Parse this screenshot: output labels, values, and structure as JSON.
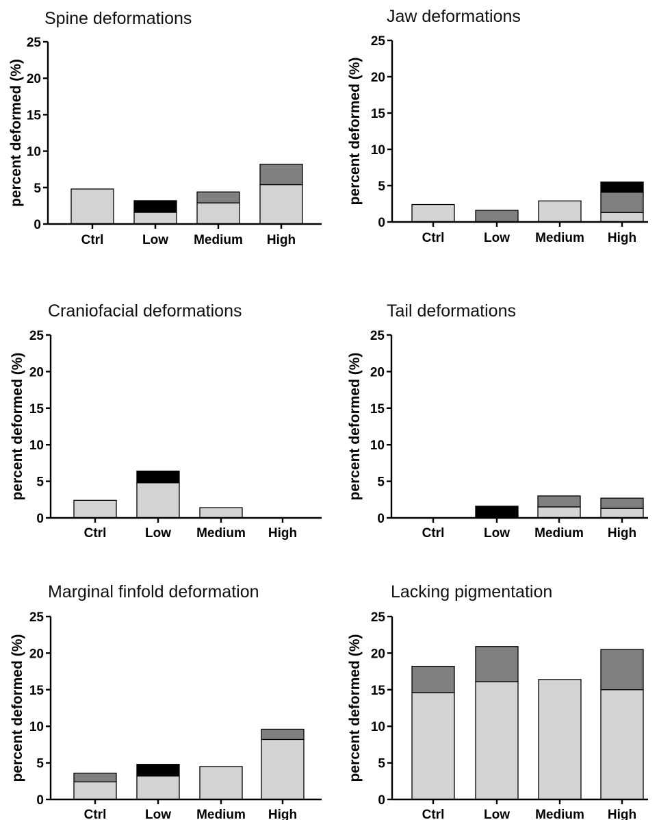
{
  "chart_data": [
    {
      "type": "bar",
      "stacked": true,
      "title": "Spine deformations",
      "ylabel": "percent deformed (%)",
      "xlabel": "",
      "ylim": [
        0,
        25
      ],
      "yticks": [
        "0",
        "5",
        "10",
        "15",
        "20",
        "25"
      ],
      "categories": [
        "Ctrl",
        "Low",
        "Medium",
        "High"
      ],
      "series": [
        {
          "color": "#d3d3d3",
          "values": [
            4.8,
            1.6,
            2.9,
            5.4
          ]
        },
        {
          "color": "#808080",
          "values": [
            0,
            0,
            1.5,
            2.8
          ]
        },
        {
          "color": "#000000",
          "values": [
            0,
            1.6,
            0,
            0
          ]
        }
      ]
    },
    {
      "type": "bar",
      "stacked": true,
      "title": "Jaw deformations",
      "ylabel": "percent deformed (%)",
      "xlabel": "",
      "ylim": [
        0,
        25
      ],
      "yticks": [
        "0",
        "5",
        "10",
        "15",
        "20",
        "25"
      ],
      "categories": [
        "Ctrl",
        "Low",
        "Medium",
        "High"
      ],
      "series": [
        {
          "color": "#d3d3d3",
          "values": [
            2.4,
            0,
            2.9,
            1.3
          ]
        },
        {
          "color": "#808080",
          "values": [
            0,
            1.6,
            0,
            2.8
          ]
        },
        {
          "color": "#000000",
          "values": [
            0,
            0,
            0,
            1.4
          ]
        }
      ]
    },
    {
      "type": "bar",
      "stacked": true,
      "title": "Craniofacial deformations",
      "ylabel": "percent deformed (%)",
      "xlabel": "",
      "ylim": [
        0,
        25
      ],
      "yticks": [
        "0",
        "5",
        "10",
        "15",
        "20",
        "25"
      ],
      "categories": [
        "Ctrl",
        "Low",
        "Medium",
        "High"
      ],
      "series": [
        {
          "color": "#d3d3d3",
          "values": [
            2.4,
            4.8,
            1.4,
            0
          ]
        },
        {
          "color": "#808080",
          "values": [
            0,
            0,
            0,
            0
          ]
        },
        {
          "color": "#000000",
          "values": [
            0,
            1.6,
            0,
            0
          ]
        }
      ]
    },
    {
      "type": "bar",
      "stacked": true,
      "title": "Tail deformations",
      "ylabel": "percent deformed (%)",
      "xlabel": "",
      "ylim": [
        0,
        25
      ],
      "yticks": [
        "0",
        "5",
        "10",
        "15",
        "20",
        "25"
      ],
      "categories": [
        "Ctrl",
        "Low",
        "Medium",
        "High"
      ],
      "series": [
        {
          "color": "#d3d3d3",
          "values": [
            0,
            0,
            1.5,
            1.3
          ]
        },
        {
          "color": "#808080",
          "values": [
            0,
            0,
            1.5,
            1.4
          ]
        },
        {
          "color": "#000000",
          "values": [
            0,
            1.6,
            0,
            0
          ]
        }
      ]
    },
    {
      "type": "bar",
      "stacked": true,
      "title": "Marginal finfold deformation",
      "ylabel": "percent deformed (%)",
      "xlabel": "",
      "ylim": [
        0,
        25
      ],
      "yticks": [
        "0",
        "5",
        "10",
        "15",
        "20",
        "25"
      ],
      "categories": [
        "Ctrl",
        "Low",
        "Medium",
        "High"
      ],
      "series": [
        {
          "color": "#d3d3d3",
          "values": [
            2.4,
            3.2,
            4.5,
            8.2
          ]
        },
        {
          "color": "#808080",
          "values": [
            1.2,
            0,
            0,
            1.4
          ]
        },
        {
          "color": "#000000",
          "values": [
            0,
            1.6,
            0,
            0
          ]
        }
      ]
    },
    {
      "type": "bar",
      "stacked": true,
      "title": "Lacking pigmentation",
      "ylabel": "percent deformed (%)",
      "xlabel": "",
      "ylim": [
        0,
        25
      ],
      "yticks": [
        "0",
        "5",
        "10",
        "15",
        "20",
        "25"
      ],
      "categories": [
        "Ctrl",
        "Low",
        "Medium",
        "High"
      ],
      "series": [
        {
          "color": "#d3d3d3",
          "values": [
            14.6,
            16.1,
            16.4,
            15.0
          ]
        },
        {
          "color": "#808080",
          "values": [
            3.6,
            4.8,
            0,
            5.5
          ]
        },
        {
          "color": "#000000",
          "values": [
            0,
            0,
            0,
            0
          ]
        }
      ]
    }
  ]
}
